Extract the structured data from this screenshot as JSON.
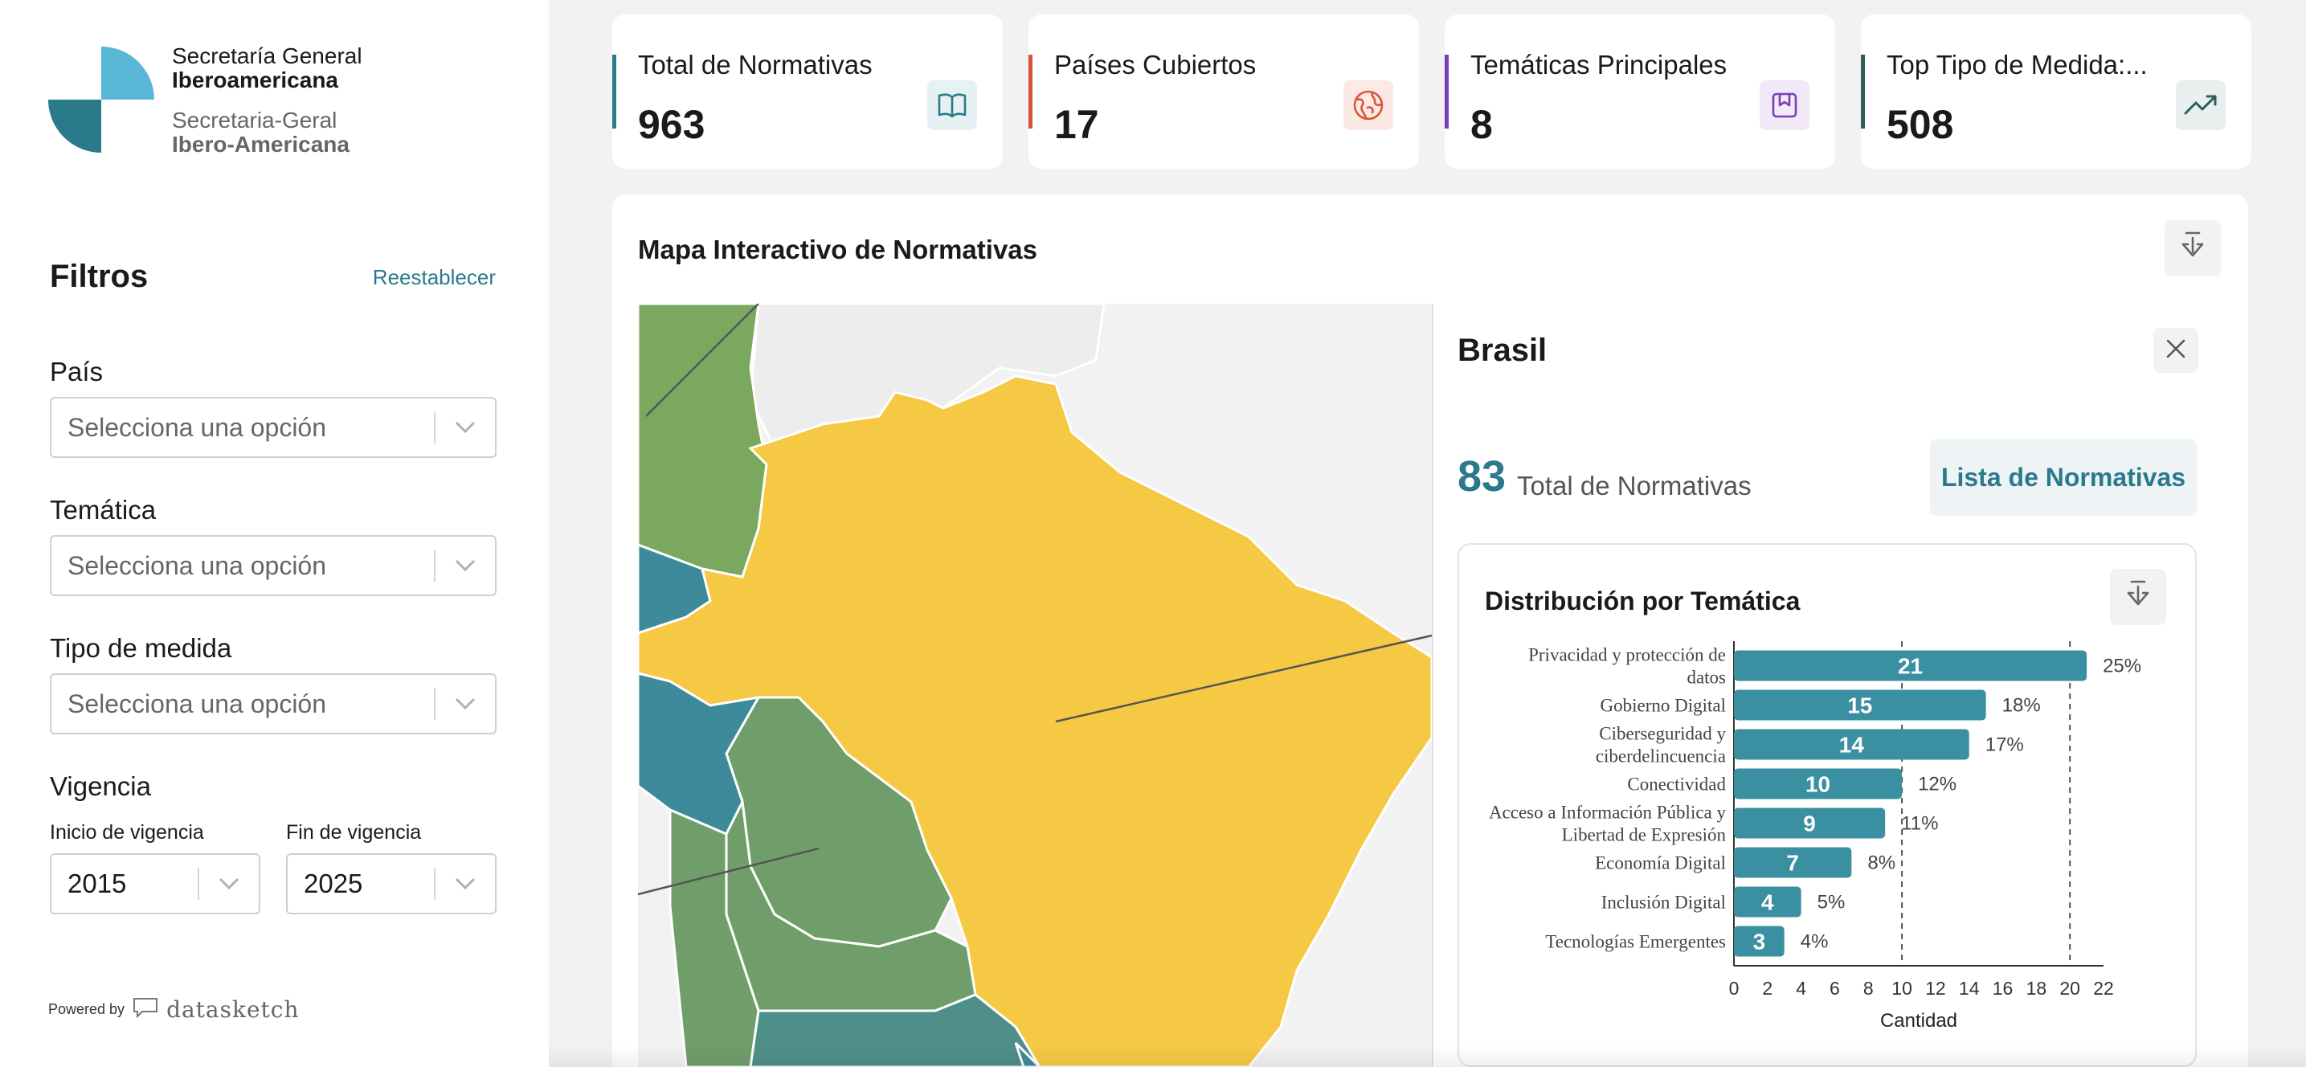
{
  "logo": {
    "line1": "Secretaría General",
    "line2": "Iberoamericana",
    "line3": "Secretaria-Geral",
    "line4": "Ibero-Americana",
    "colors": {
      "light": "#5bb7d8",
      "dark": "#2b7a8c"
    }
  },
  "filters": {
    "title": "Filtros",
    "reset_label": "Reestablecer",
    "pais": {
      "label": "País",
      "placeholder": "Selecciona una opción"
    },
    "tematica": {
      "label": "Temática",
      "placeholder": "Selecciona una opción"
    },
    "tipo_medida": {
      "label": "Tipo de medida",
      "placeholder": "Selecciona una opción"
    },
    "vigencia": {
      "label": "Vigencia",
      "inicio_label": "Inicio de vigencia",
      "inicio_value": "2015",
      "fin_label": "Fin de vigencia",
      "fin_value": "2025"
    }
  },
  "powered": {
    "label": "Powered by",
    "brand": "datasketch"
  },
  "kpis": [
    {
      "label": "Total de Normativas",
      "value": "963",
      "icon": "book-icon",
      "accent": "#2b7a8c",
      "icon_bg": "#e6f1f3"
    },
    {
      "label": "Países Cubiertos",
      "value": "17",
      "icon": "globe-icon",
      "accent": "#d9553a",
      "icon_bg": "#fbe9e4"
    },
    {
      "label": "Temáticas Principales",
      "value": "8",
      "icon": "bookmark-icon",
      "accent": "#7b3fb5",
      "icon_bg": "#f1e8f8"
    },
    {
      "label": "Top Tipo de Medida:...",
      "value": "508",
      "icon": "trending-up-icon",
      "accent": "#2e5d5a",
      "icon_bg": "#e8efee"
    }
  ],
  "map": {
    "title": "Mapa Interactivo de Normativas",
    "colors": {
      "selected": "#f6c945",
      "green": "#6f9e6a",
      "green2": "#7aa85e",
      "teal": "#3d8a9a",
      "teal2": "#4f8f8a",
      "grey": "#ededed"
    }
  },
  "detail": {
    "country": "Brasil",
    "total_value": "83",
    "total_label": "Total de Normativas",
    "list_button": "Lista de Normativas"
  },
  "chart_data": {
    "type": "bar",
    "orientation": "horizontal",
    "title": "Distribución por Temática",
    "xlabel": "Cantidad",
    "ylabel": "",
    "xlim": [
      0,
      22
    ],
    "xticks": [
      0,
      2,
      4,
      6,
      8,
      10,
      12,
      14,
      16,
      18,
      20,
      22
    ],
    "reference_lines": [
      10,
      20
    ],
    "bar_color": "#3a8fa0",
    "categories": [
      [
        "Privacidad y protección de",
        "datos"
      ],
      [
        "Gobierno Digital"
      ],
      [
        "Ciberseguridad y",
        "ciberdelincuencia"
      ],
      [
        "Conectividad"
      ],
      [
        "Acceso a Información Pública y",
        "Libertad de Expresión"
      ],
      [
        "Economía Digital"
      ],
      [
        "Inclusión Digital"
      ],
      [
        "Tecnologías Emergentes"
      ]
    ],
    "values": [
      21,
      15,
      14,
      10,
      9,
      7,
      4,
      3
    ],
    "percents": [
      "25%",
      "18%",
      "17%",
      "12%",
      "11%",
      "8%",
      "5%",
      "4%"
    ]
  }
}
